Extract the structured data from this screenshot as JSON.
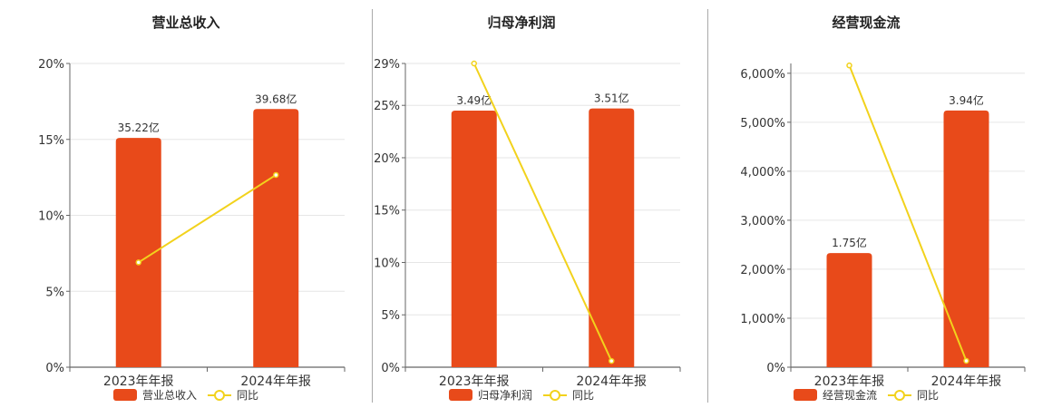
{
  "colors": {
    "bar": "#e84a1a",
    "line": "#f2d21c",
    "grid": "#e6e6e6",
    "axis": "#666666"
  },
  "chart_data": [
    {
      "type": "bar",
      "title": "营业总收入",
      "categories": [
        "2023年年报",
        "2024年年报"
      ],
      "bar_series": {
        "name": "营业总收入",
        "values": [
          35.22,
          39.68
        ],
        "labels": [
          "35.22亿",
          "39.68亿"
        ]
      },
      "line_series": {
        "name": "同比",
        "values": [
          6.9,
          12.66
        ]
      },
      "y_axis": {
        "ticks": [
          "0%",
          "5%",
          "10%",
          "15%",
          "20%"
        ],
        "tick_values": [
          0,
          5,
          10,
          15,
          20
        ],
        "ylim": [
          0,
          20
        ]
      },
      "bar_heights_pct": [
        15.1,
        17.0
      ],
      "legend": "bottom"
    },
    {
      "type": "bar",
      "title": "归母净利润",
      "categories": [
        "2023年年报",
        "2024年年报"
      ],
      "bar_series": {
        "name": "归母净利润",
        "values": [
          3.49,
          3.51
        ],
        "labels": [
          "3.49亿",
          "3.51亿"
        ]
      },
      "line_series": {
        "name": "同比",
        "values": [
          29.0,
          0.6
        ]
      },
      "y_axis": {
        "ticks": [
          "0%",
          "5%",
          "10%",
          "15%",
          "20%",
          "25%",
          "29%"
        ],
        "tick_values": [
          0,
          5,
          10,
          15,
          20,
          25,
          29
        ],
        "ylim": [
          0,
          29
        ]
      },
      "bar_heights_pct": [
        24.5,
        24.7
      ],
      "legend": "bottom"
    },
    {
      "type": "bar",
      "title": "经营现金流",
      "categories": [
        "2023年年报",
        "2024年年报"
      ],
      "bar_series": {
        "name": "经营现金流",
        "values": [
          1.75,
          3.94
        ],
        "labels": [
          "1.75亿",
          "3.94亿"
        ]
      },
      "line_series": {
        "name": "同比",
        "values": [
          6160,
          130
        ]
      },
      "y_axis": {
        "ticks": [
          "0%",
          "1,000%",
          "2,000%",
          "3,000%",
          "4,000%",
          "5,000%",
          "6,000%"
        ],
        "tick_values": [
          0,
          1000,
          2000,
          3000,
          4000,
          5000,
          6000
        ],
        "ylim": [
          0,
          6200
        ]
      },
      "bar_heights_pct": [
        2330,
        5240
      ],
      "legend": "bottom"
    }
  ]
}
